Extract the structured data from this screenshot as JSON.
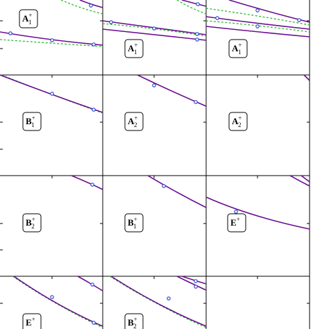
{
  "panels": [
    {
      "label": {
        "base": "A",
        "sub": "1",
        "sup": "+"
      }
    },
    {
      "label": {
        "base": "A",
        "sub": "1",
        "sup": "+"
      }
    },
    {
      "label": {
        "base": "A",
        "sub": "1",
        "sup": "+"
      }
    },
    {
      "label": {
        "base": "B",
        "sub": "1",
        "sup": "+"
      }
    },
    {
      "label": {
        "base": "A",
        "sub": "2",
        "sup": "+"
      }
    },
    {
      "label": {
        "base": "A",
        "sub": "2",
        "sup": "+"
      }
    },
    {
      "label": {
        "base": "B",
        "sub": "2",
        "sup": "+"
      }
    },
    {
      "label": {
        "base": "B",
        "sub": "1",
        "sup": "+"
      }
    },
    {
      "label": {
        "base": "E",
        "sup": "+"
      }
    },
    {
      "label": {
        "base": "E",
        "sup": "+"
      }
    },
    {
      "label": {
        "base": "B",
        "sub": "2",
        "sup": "+"
      }
    }
  ]
}
